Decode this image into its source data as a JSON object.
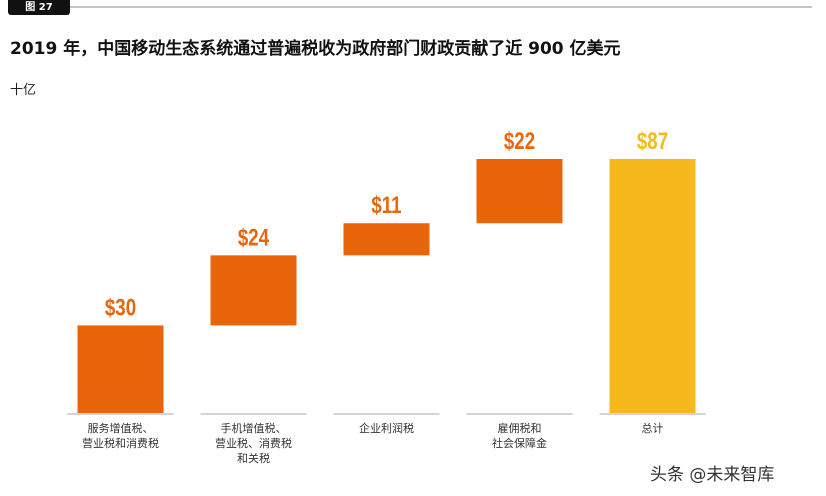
{
  "chart_data": {
    "type": "waterfall",
    "figure_label": "图 27",
    "title": "2019 年，中国移动生态系统通过普遍税收为政府部门财政贡献了近 900 亿美元",
    "unit": "十亿",
    "watermark": "头条 @未来智库",
    "categories": [
      "服务增值税、\n营业税和消费税",
      "手机增值税、\n营业税、消费税\n和关税",
      "企业利润税",
      "雇佣税和\n社会保障金",
      "总计"
    ],
    "values": [
      30,
      24,
      11,
      22,
      87
    ],
    "value_labels": [
      "$30",
      "$24",
      "$11",
      "$22",
      "$87"
    ],
    "is_total": [
      false,
      false,
      false,
      false,
      true
    ],
    "color": "#e8650a",
    "total_color": "#f5b91c",
    "ylim": [
      0,
      87
    ]
  }
}
